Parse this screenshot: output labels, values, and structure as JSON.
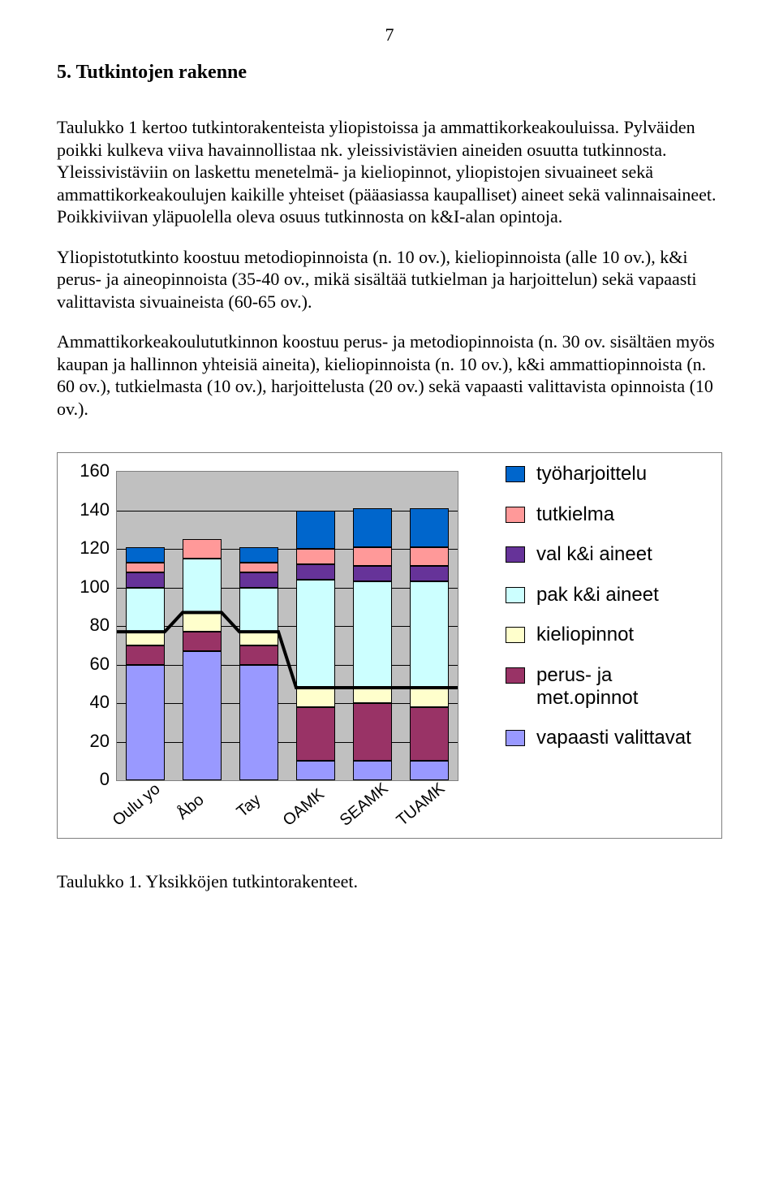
{
  "page_number": "7",
  "heading": "5. Tutkintojen rakenne",
  "paragraphs": {
    "p1": "Taulukko 1 kertoo tutkintorakenteista yliopistoissa ja ammattikorkeakouluissa. Pylväiden poikki kulkeva viiva havainnollistaa nk. yleissivistävien aineiden osuutta tutkinnosta. Yleissivistäviin on laskettu menetelmä- ja kieliopinnot, yliopistojen sivuaineet sekä ammattikorkeakoulujen kaikille yhteiset (pääasiassa kaupalliset) aineet sekä valinnaisaineet. Poikkiviivan yläpuolella oleva osuus tutkinnosta on k&I-alan opintoja.",
    "p2": "Yliopistotutkinto koostuu metodiopinnoista (n. 10 ov.), kieliopinnoista (alle 10 ov.), k&i perus- ja aineopinnoista (35-40 ov., mikä sisältää tutkielman ja harjoittelun) sekä vapaasti valittavista sivuaineista (60-65 ov.).",
    "p3": "Ammattikorkeakoulututkinnon koostuu perus- ja metodiopinnoista (n. 30 ov. sisältäen myös kaupan ja hallinnon yhteisiä aineita), kieliopinnoista (n. 10 ov.), k&i ammattiopinnoista (n. 60 ov.), tutkielmasta (10 ov.), harjoittelusta (20 ov.) sekä vapaasti valittavista opinnoista (10 ov.)."
  },
  "chart": {
    "type": "stacked-bar-with-line",
    "ymax": 160,
    "ytick_step": 20,
    "y_ticks": [
      0,
      20,
      40,
      60,
      80,
      100,
      120,
      140,
      160
    ],
    "plot_bg": "#c0c0c0",
    "grid_color": "#000000",
    "line_color": "#000000",
    "line_width": 4,
    "bar_border": "#000000",
    "tick_fontsize": 22,
    "xlabel_fontsize": 20,
    "legend_fontsize": 24,
    "categories": [
      "Oulu yo",
      "Åbo",
      "Tay",
      "OAMK",
      "SEAMK",
      "TUAMK"
    ],
    "series_order": [
      "vapaasti_valittavat",
      "perus_ja_met",
      "kieliopinnot",
      "pak_ki",
      "val_ki",
      "tutkielma",
      "tyoharjoittelu"
    ],
    "series": {
      "tyoharjoittelu": {
        "label": "työharjoittelu",
        "color": "#0066cc"
      },
      "tutkielma": {
        "label": "tutkielma",
        "color": "#ff9999"
      },
      "val_ki": {
        "label": "val k&i aineet",
        "color": "#663399"
      },
      "pak_ki": {
        "label": "pak k&i aineet",
        "color": "#ccffff"
      },
      "kieliopinnot": {
        "label": "kieliopinnot",
        "color": "#ffffcc"
      },
      "perus_ja_met": {
        "label": "perus- ja met.opinnot",
        "color": "#993366"
      },
      "vapaasti_valittavat": {
        "label": "vapaasti valittavat",
        "color": "#9999ff"
      }
    },
    "legend_order": [
      "tyoharjoittelu",
      "tutkielma",
      "val_ki",
      "pak_ki",
      "kieliopinnot",
      "perus_ja_met",
      "vapaasti_valittavat"
    ],
    "data": {
      "Oulu yo": {
        "vapaasti_valittavat": 60,
        "perus_ja_met": 10,
        "kieliopinnot": 7,
        "pak_ki": 23,
        "val_ki": 8,
        "tutkielma": 5,
        "tyoharjoittelu": 8
      },
      "Åbo": {
        "vapaasti_valittavat": 67,
        "perus_ja_met": 10,
        "kieliopinnot": 10,
        "pak_ki": 28,
        "val_ki": 0,
        "tutkielma": 10,
        "tyoharjoittelu": 0
      },
      "Tay": {
        "vapaasti_valittavat": 60,
        "perus_ja_met": 10,
        "kieliopinnot": 7,
        "pak_ki": 23,
        "val_ki": 8,
        "tutkielma": 5,
        "tyoharjoittelu": 8
      },
      "OAMK": {
        "vapaasti_valittavat": 10,
        "perus_ja_met": 28,
        "kieliopinnot": 10,
        "pak_ki": 56,
        "val_ki": 8,
        "tutkielma": 8,
        "tyoharjoittelu": 20
      },
      "SEAMK": {
        "vapaasti_valittavat": 10,
        "perus_ja_met": 30,
        "kieliopinnot": 8,
        "pak_ki": 55,
        "val_ki": 8,
        "tutkielma": 10,
        "tyoharjoittelu": 20
      },
      "TUAMK": {
        "vapaasti_valittavat": 10,
        "perus_ja_met": 28,
        "kieliopinnot": 10,
        "pak_ki": 55,
        "val_ki": 8,
        "tutkielma": 10,
        "tyoharjoittelu": 20
      }
    },
    "line_values": [
      77,
      87,
      77,
      48,
      48,
      48
    ]
  },
  "caption": "Taulukko 1. Yksikköjen tutkintorakenteet."
}
